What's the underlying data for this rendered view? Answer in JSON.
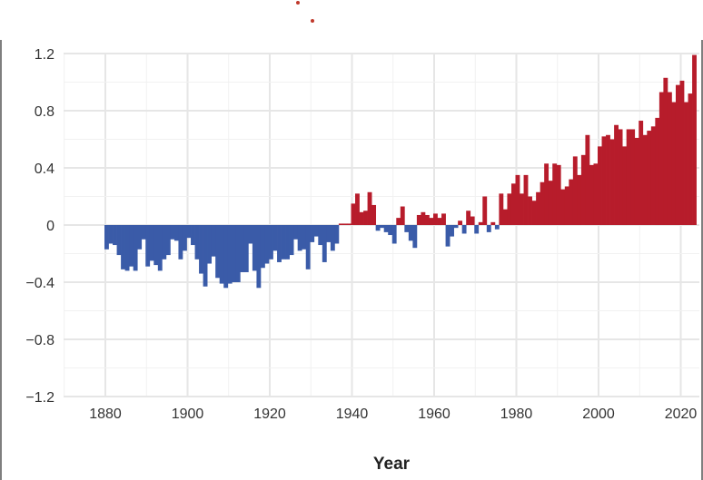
{
  "chart_data": {
    "type": "bar",
    "title": "",
    "xlabel": "Year",
    "ylabel": "",
    "xlim": [
      1870,
      2025
    ],
    "ylim": [
      -1.2,
      1.2
    ],
    "x_ticks": [
      1880,
      1900,
      1920,
      1940,
      1960,
      1980,
      2000,
      2020
    ],
    "y_ticks": [
      1.2,
      0.8,
      0.4,
      0,
      -0.4,
      -0.8,
      -1.2
    ],
    "y_tick_labels": [
      "1.2",
      "0.8",
      "0.4",
      "0",
      "−0.4",
      "−0.8",
      "−1.2"
    ],
    "grid": true,
    "colors": {
      "positive": "#b71c2b",
      "negative": "#3a5ba8",
      "dot": "#c0392b"
    },
    "x": [
      1880,
      1881,
      1882,
      1883,
      1884,
      1885,
      1886,
      1887,
      1888,
      1889,
      1890,
      1891,
      1892,
      1893,
      1894,
      1895,
      1896,
      1897,
      1898,
      1899,
      1900,
      1901,
      1902,
      1903,
      1904,
      1905,
      1906,
      1907,
      1908,
      1909,
      1910,
      1911,
      1912,
      1913,
      1914,
      1915,
      1916,
      1917,
      1918,
      1919,
      1920,
      1921,
      1922,
      1923,
      1924,
      1925,
      1926,
      1927,
      1928,
      1929,
      1930,
      1931,
      1932,
      1933,
      1934,
      1935,
      1936,
      1937,
      1938,
      1939,
      1940,
      1941,
      1942,
      1943,
      1944,
      1945,
      1946,
      1947,
      1948,
      1949,
      1950,
      1951,
      1952,
      1953,
      1954,
      1955,
      1956,
      1957,
      1958,
      1959,
      1960,
      1961,
      1962,
      1963,
      1964,
      1965,
      1966,
      1967,
      1968,
      1969,
      1970,
      1971,
      1972,
      1973,
      1974,
      1975,
      1976,
      1977,
      1978,
      1979,
      1980,
      1981,
      1982,
      1983,
      1984,
      1985,
      1986,
      1987,
      1988,
      1989,
      1990,
      1991,
      1992,
      1993,
      1994,
      1995,
      1996,
      1997,
      1998,
      1999,
      2000,
      2001,
      2002,
      2003,
      2004,
      2005,
      2006,
      2007,
      2008,
      2009,
      2010,
      2011,
      2012,
      2013,
      2014,
      2015,
      2016,
      2017,
      2018,
      2019,
      2020,
      2021,
      2022,
      2023
    ],
    "values": [
      -0.17,
      -0.13,
      -0.14,
      -0.21,
      -0.31,
      -0.32,
      -0.29,
      -0.32,
      -0.17,
      -0.1,
      -0.29,
      -0.25,
      -0.28,
      -0.32,
      -0.24,
      -0.21,
      -0.1,
      -0.11,
      -0.24,
      -0.18,
      -0.09,
      -0.14,
      -0.24,
      -0.34,
      -0.43,
      -0.27,
      -0.22,
      -0.37,
      -0.41,
      -0.44,
      -0.41,
      -0.4,
      -0.4,
      -0.33,
      -0.33,
      -0.13,
      -0.32,
      -0.44,
      -0.3,
      -0.27,
      -0.24,
      -0.18,
      -0.26,
      -0.24,
      -0.24,
      -0.21,
      -0.1,
      -0.18,
      -0.17,
      -0.31,
      -0.12,
      -0.08,
      -0.14,
      -0.26,
      -0.12,
      -0.18,
      -0.13,
      0.01,
      0.01,
      0.01,
      0.15,
      0.22,
      0.09,
      0.1,
      0.23,
      0.14,
      -0.04,
      -0.02,
      -0.05,
      -0.07,
      -0.13,
      0.05,
      0.13,
      -0.05,
      -0.11,
      -0.16,
      0.07,
      0.09,
      0.07,
      0.05,
      0.08,
      0.05,
      0.08,
      -0.15,
      -0.08,
      -0.02,
      0.03,
      -0.06,
      0.1,
      0.06,
      -0.06,
      0.02,
      0.2,
      -0.05,
      0.02,
      -0.03,
      0.22,
      0.11,
      0.22,
      0.29,
      0.35,
      0.22,
      0.35,
      0.2,
      0.17,
      0.23,
      0.3,
      0.43,
      0.31,
      0.43,
      0.42,
      0.25,
      0.27,
      0.32,
      0.48,
      0.35,
      0.49,
      0.63,
      0.42,
      0.43,
      0.55,
      0.62,
      0.63,
      0.6,
      0.7,
      0.67,
      0.55,
      0.67,
      0.67,
      0.61,
      0.73,
      0.63,
      0.66,
      0.69,
      0.75,
      0.93,
      1.03,
      0.93,
      0.86,
      0.98,
      1.01,
      0.86,
      0.92,
      1.19
    ],
    "annotations": []
  }
}
